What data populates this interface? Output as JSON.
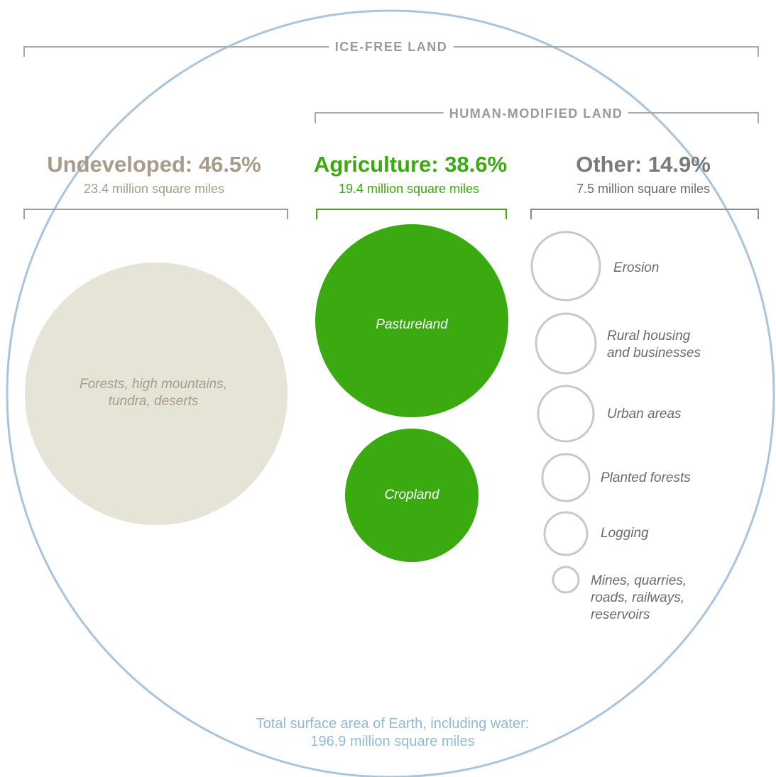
{
  "colors": {
    "outer_circle": "#a9c4dc",
    "undeveloped": "#a89b89",
    "undeveloped_fill": "#e6e4d6",
    "agriculture": "#3aaa10",
    "other": "#7a7a7a",
    "other_circle": "#c8c8c8",
    "bracket_gray": "#aaaaaa",
    "total_text": "#94b9d6"
  },
  "brackets": {
    "ice_free": "ICE-FREE LAND",
    "human_modified": "HUMAN-MODIFIED LAND"
  },
  "groups": [
    {
      "heading": "Undeveloped: 46.5%",
      "area": "23.4 million square miles",
      "items": [
        "Forests, high mountains,\ntundra, deserts"
      ]
    },
    {
      "heading": "Agriculture: 38.6%",
      "area": "19.4 million square miles",
      "items": [
        "Pastureland",
        "Cropland"
      ]
    },
    {
      "heading": "Other: 14.9%",
      "area": "7.5 million square miles",
      "items": [
        "Erosion",
        "Rural housing\nand businesses",
        "Urban areas",
        "Planted forests",
        "Logging",
        "Mines, quarries,\nroads, railways,\nreservoirs"
      ]
    }
  ],
  "total": {
    "line1": "Total surface area of Earth, including water:",
    "line2": "196.9 million square miles"
  }
}
